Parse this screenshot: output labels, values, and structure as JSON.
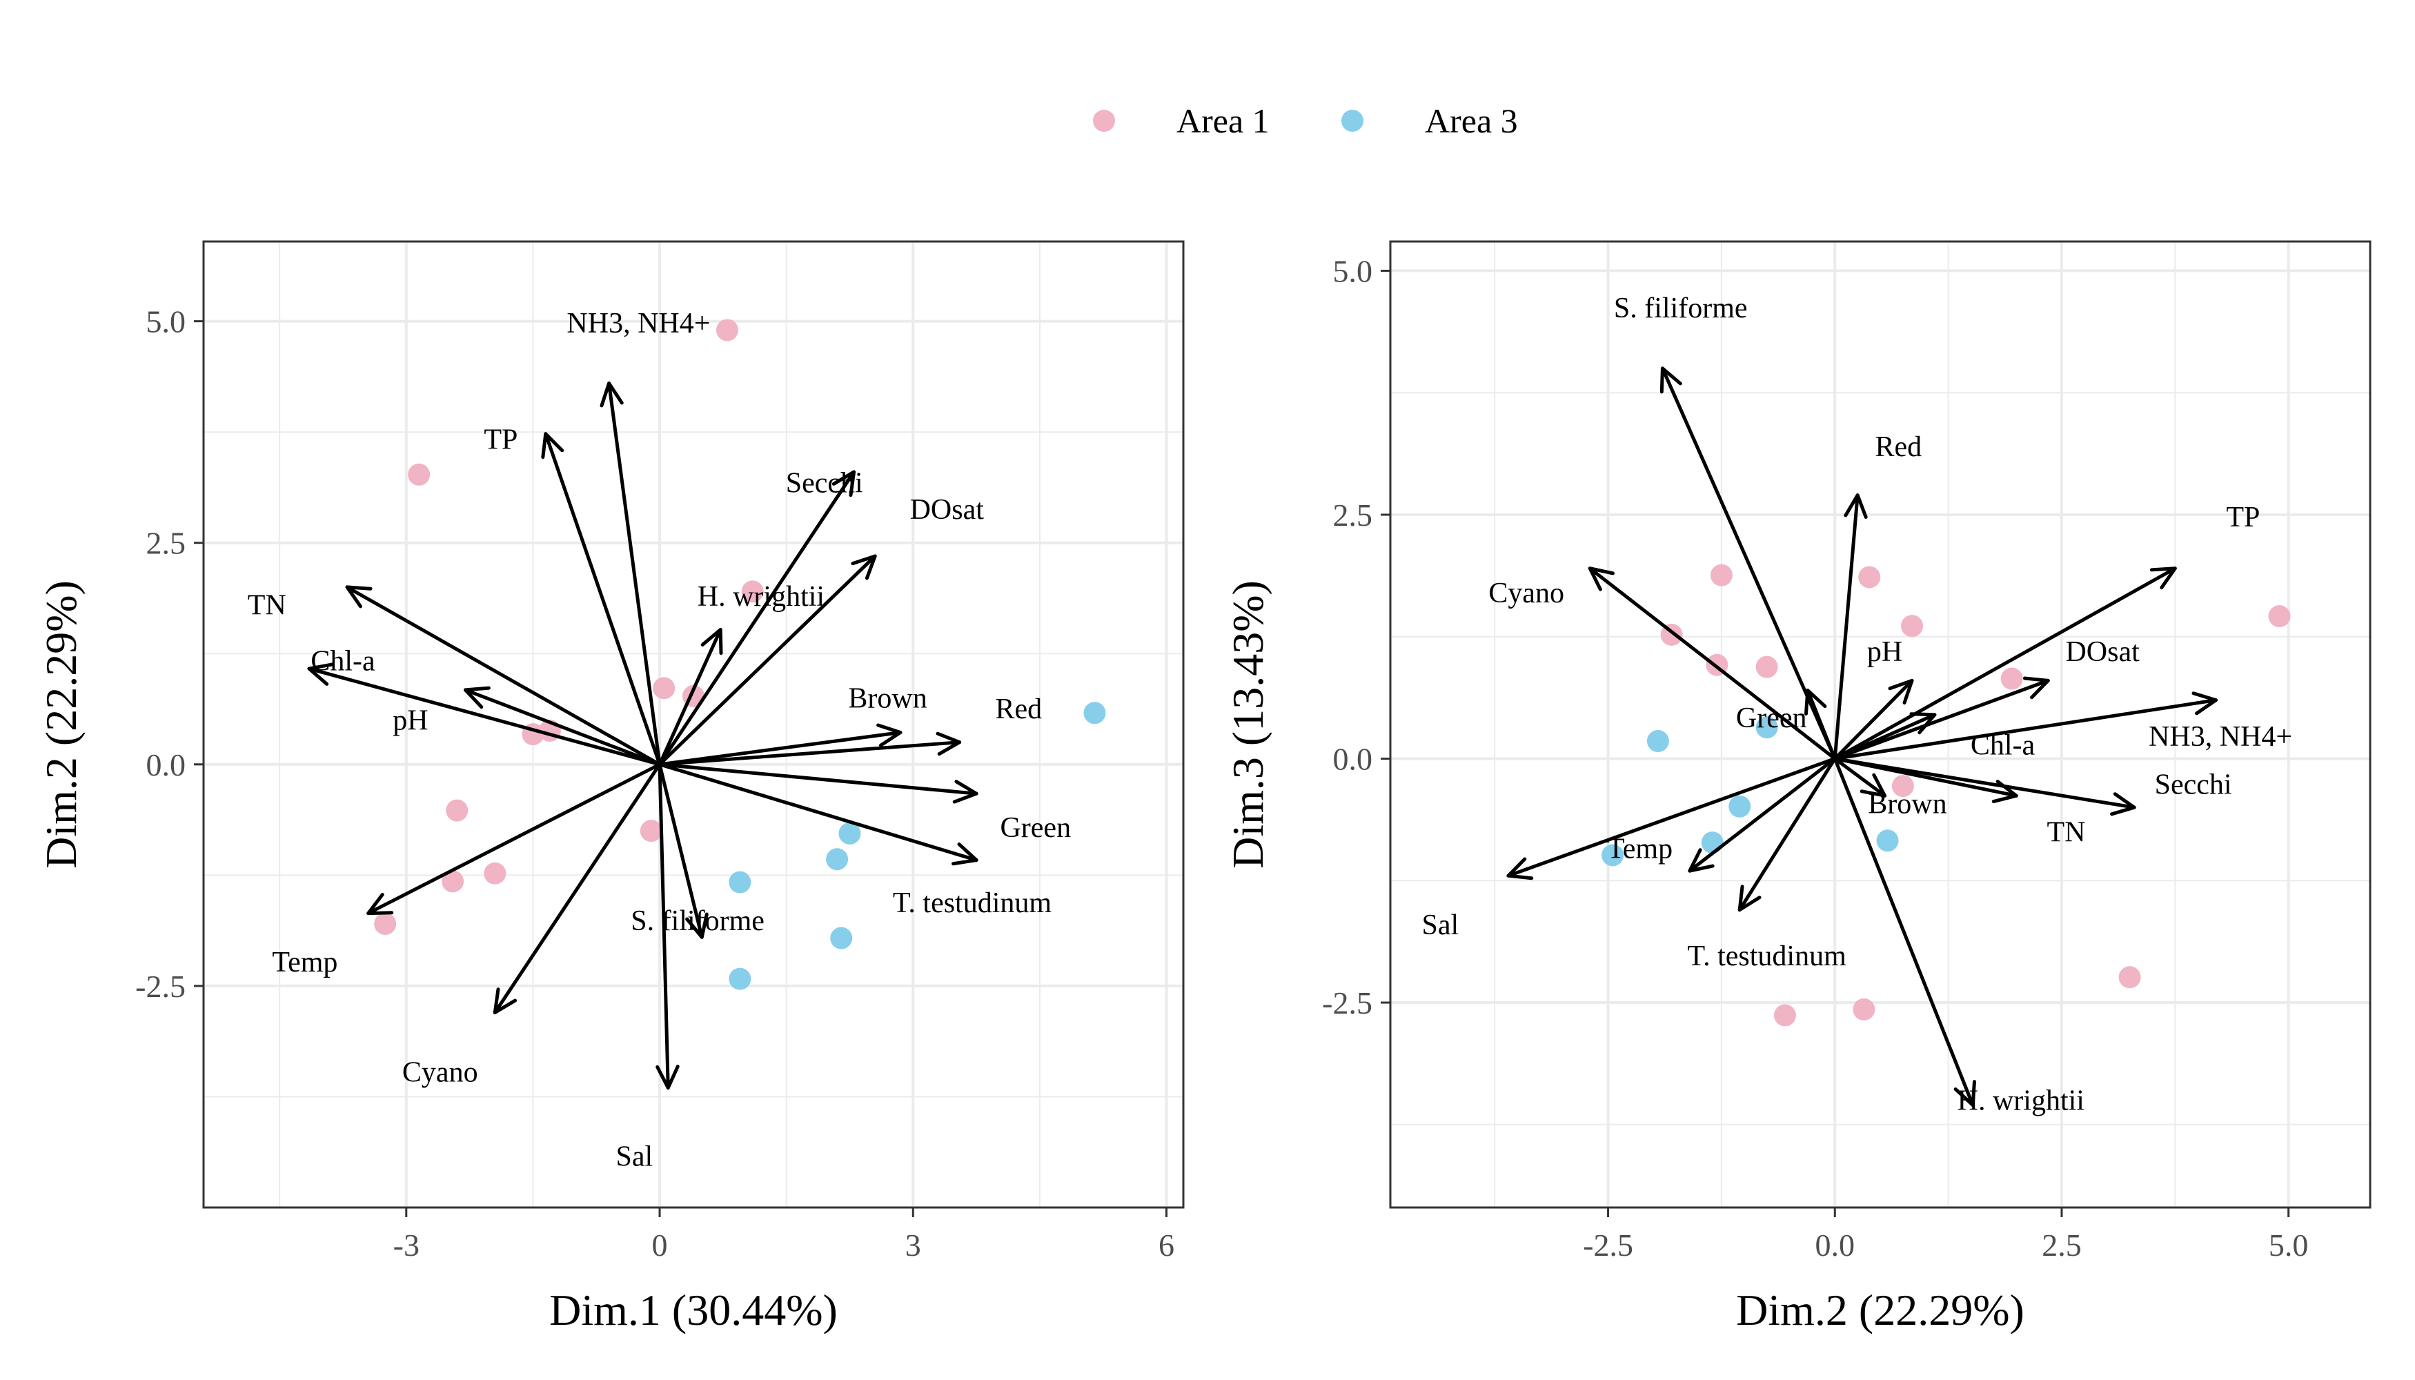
{
  "colors": {
    "area1": "#F0B4C4",
    "area3": "#87CEEB",
    "arrow": "#000000",
    "grid": "#EBEBEB",
    "axis_text": "#4D4D4D",
    "panel_border": "#333333"
  },
  "legend": {
    "position": "top-center",
    "items": [
      {
        "label": "Area 1",
        "color": "#F0B4C4"
      },
      {
        "label": "Area 3",
        "color": "#87CEEB"
      }
    ]
  },
  "chart_data": [
    {
      "type": "scatter",
      "subtype": "pca-biplot",
      "xlabel": "Dim.1 (30.44%)",
      "ylabel": "Dim.2 (22.29%)",
      "xlim": [
        -5.4,
        6.2
      ],
      "ylim": [
        -5.0,
        5.9
      ],
      "xticks": [
        {
          "value": -3,
          "label": "-3"
        },
        {
          "value": 0,
          "label": "0"
        },
        {
          "value": 3,
          "label": "3"
        },
        {
          "value": 6,
          "label": "6"
        }
      ],
      "yticks": [
        {
          "value": 5,
          "label": "5.0"
        },
        {
          "value": 2.5,
          "label": "2.5"
        },
        {
          "value": 0,
          "label": "0.0"
        },
        {
          "value": -2.5,
          "label": "-2.5"
        }
      ],
      "grid": true,
      "points": [
        {
          "x": 0.8,
          "y": 4.9,
          "area": "Area 1"
        },
        {
          "x": -2.85,
          "y": 3.27,
          "area": "Area 1"
        },
        {
          "x": 1.1,
          "y": 1.95,
          "area": "Area 1"
        },
        {
          "x": 0.05,
          "y": 0.86,
          "area": "Area 1"
        },
        {
          "x": 0.4,
          "y": 0.77,
          "area": "Area 1"
        },
        {
          "x": -1.5,
          "y": 0.34,
          "area": "Area 1"
        },
        {
          "x": -1.3,
          "y": 0.38,
          "area": "Area 1"
        },
        {
          "x": -2.4,
          "y": -0.52,
          "area": "Area 1"
        },
        {
          "x": -2.45,
          "y": -1.32,
          "area": "Area 1"
        },
        {
          "x": -1.95,
          "y": -1.23,
          "area": "Area 1"
        },
        {
          "x": -3.25,
          "y": -1.8,
          "area": "Area 1"
        },
        {
          "x": -0.1,
          "y": -0.75,
          "area": "Area 1"
        },
        {
          "x": 5.15,
          "y": 0.58,
          "area": "Area 3"
        },
        {
          "x": 2.25,
          "y": -0.78,
          "area": "Area 3"
        },
        {
          "x": 2.1,
          "y": -1.07,
          "area": "Area 3"
        },
        {
          "x": 0.95,
          "y": -1.33,
          "area": "Area 3"
        },
        {
          "x": 2.15,
          "y": -1.96,
          "area": "Area 3"
        },
        {
          "x": 0.95,
          "y": -2.42,
          "area": "Area 3"
        }
      ],
      "vectors": [
        {
          "name": "NH3, NH4+",
          "x": -0.6,
          "y": 4.3,
          "label_x": -0.25,
          "label_y": 4.98
        },
        {
          "name": "TP",
          "x": -1.35,
          "y": 3.73,
          "label_x": -1.88,
          "label_y": 3.67
        },
        {
          "name": "Secchi",
          "x": 2.3,
          "y": 3.3,
          "label_x": 1.95,
          "label_y": 3.18
        },
        {
          "name": "DOsat",
          "x": 2.55,
          "y": 2.35,
          "label_x": 3.4,
          "label_y": 2.88
        },
        {
          "name": "H. wrightii",
          "x": 0.72,
          "y": 1.52,
          "label_x": 1.2,
          "label_y": 1.9
        },
        {
          "name": "TN",
          "x": -3.7,
          "y": 2.0,
          "label_x": -4.65,
          "label_y": 1.8
        },
        {
          "name": "Chl-a",
          "x": -4.15,
          "y": 1.08,
          "label_x": -3.75,
          "label_y": 1.17
        },
        {
          "name": "pH",
          "x": -2.3,
          "y": 0.84,
          "label_x": -2.95,
          "label_y": 0.5
        },
        {
          "name": "Brown",
          "x": 2.85,
          "y": 0.36,
          "label_x": 2.7,
          "label_y": 0.75
        },
        {
          "name": "Red",
          "x": 3.55,
          "y": 0.25,
          "label_x": 4.25,
          "label_y": 0.63
        },
        {
          "name": "Green",
          "x": 3.75,
          "y": -0.33,
          "label_x": 4.45,
          "label_y": -0.71
        },
        {
          "name": "T. testudinum",
          "x": 3.75,
          "y": -1.08,
          "label_x": 3.7,
          "label_y": -1.56
        },
        {
          "name": "S. filiforme",
          "x": 0.5,
          "y": -1.95,
          "label_x": 0.45,
          "label_y": -1.76
        },
        {
          "name": "Temp",
          "x": -3.45,
          "y": -1.68,
          "label_x": -4.2,
          "label_y": -2.23
        },
        {
          "name": "Cyano",
          "x": -1.95,
          "y": -2.8,
          "label_x": -2.6,
          "label_y": -3.47
        },
        {
          "name": "Sal",
          "x": 0.1,
          "y": -3.65,
          "label_x": -0.3,
          "label_y": -4.42
        }
      ]
    },
    {
      "type": "scatter",
      "subtype": "pca-biplot",
      "xlabel": "Dim.2 (22.29%)",
      "ylabel": "Dim.3 (13.43%)",
      "xlim": [
        -4.9,
        5.9
      ],
      "ylim": [
        -4.6,
        5.3
      ],
      "xticks": [
        {
          "value": -2.5,
          "label": "-2.5"
        },
        {
          "value": 0,
          "label": "0.0"
        },
        {
          "value": 2.5,
          "label": "2.5"
        },
        {
          "value": 5,
          "label": "5.0"
        }
      ],
      "yticks": [
        {
          "value": 5,
          "label": "5.0"
        },
        {
          "value": 2.5,
          "label": "2.5"
        },
        {
          "value": 0,
          "label": "0.0"
        },
        {
          "value": -2.5,
          "label": "-2.5"
        }
      ],
      "grid": true,
      "points": [
        {
          "x": -1.25,
          "y": 1.88,
          "area": "Area 1"
        },
        {
          "x": 0.38,
          "y": 1.86,
          "area": "Area 1"
        },
        {
          "x": 0.85,
          "y": 1.36,
          "area": "Area 1"
        },
        {
          "x": -1.8,
          "y": 1.27,
          "area": "Area 1"
        },
        {
          "x": -1.3,
          "y": 0.96,
          "area": "Area 1"
        },
        {
          "x": -0.75,
          "y": 0.94,
          "area": "Area 1"
        },
        {
          "x": 1.95,
          "y": 0.82,
          "area": "Area 1"
        },
        {
          "x": 4.9,
          "y": 1.46,
          "area": "Area 1"
        },
        {
          "x": 0.75,
          "y": -0.28,
          "area": "Area 1"
        },
        {
          "x": 3.25,
          "y": -2.24,
          "area": "Area 1"
        },
        {
          "x": 0.32,
          "y": -2.57,
          "area": "Area 1"
        },
        {
          "x": -0.55,
          "y": -2.63,
          "area": "Area 1"
        },
        {
          "x": -1.95,
          "y": 0.18,
          "area": "Area 3"
        },
        {
          "x": -0.75,
          "y": 0.32,
          "area": "Area 3"
        },
        {
          "x": -1.05,
          "y": -0.49,
          "area": "Area 3"
        },
        {
          "x": -1.35,
          "y": -0.86,
          "area": "Area 3"
        },
        {
          "x": -2.45,
          "y": -0.99,
          "area": "Area 3"
        },
        {
          "x": 0.58,
          "y": -0.84,
          "area": "Area 3"
        }
      ],
      "vectors": [
        {
          "name": "S. filiforme",
          "x": -1.9,
          "y": 4.0,
          "label_x": -1.7,
          "label_y": 4.62
        },
        {
          "name": "Red",
          "x": 0.25,
          "y": 2.7,
          "label_x": 0.7,
          "label_y": 3.2
        },
        {
          "name": "TP",
          "x": 3.75,
          "y": 1.95,
          "label_x": 4.5,
          "label_y": 2.48
        },
        {
          "name": "Cyano",
          "x": -2.7,
          "y": 1.95,
          "label_x": -3.4,
          "label_y": 1.7
        },
        {
          "name": "DOsat",
          "x": 2.35,
          "y": 0.8,
          "label_x": 2.95,
          "label_y": 1.1
        },
        {
          "name": "NH3, NH4+",
          "x": 4.2,
          "y": 0.6,
          "label_x": 4.25,
          "label_y": 0.23
        },
        {
          "name": "pH",
          "x": 0.85,
          "y": 0.8,
          "label_x": 0.55,
          "label_y": 1.1
        },
        {
          "name": "Chl-a",
          "x": 1.1,
          "y": 0.45,
          "label_x": 1.85,
          "label_y": 0.14
        },
        {
          "name": "Green",
          "x": -0.3,
          "y": 0.7,
          "label_x": -0.7,
          "label_y": 0.42
        },
        {
          "name": "Secchi",
          "x": 3.3,
          "y": -0.5,
          "label_x": 3.95,
          "label_y": -0.26
        },
        {
          "name": "TN",
          "x": 2.0,
          "y": -0.38,
          "label_x": 2.55,
          "label_y": -0.75
        },
        {
          "name": "Brown",
          "x": 0.55,
          "y": -0.38,
          "label_x": 0.8,
          "label_y": -0.46
        },
        {
          "name": "H. wrightii",
          "x": 1.52,
          "y": -3.55,
          "label_x": 2.05,
          "label_y": -3.5
        },
        {
          "name": "Sal",
          "x": -3.6,
          "y": -1.2,
          "label_x": -4.35,
          "label_y": -1.7
        },
        {
          "name": "Temp",
          "x": -1.6,
          "y": -1.15,
          "label_x": -2.15,
          "label_y": -0.92
        },
        {
          "name": "T. testudinum",
          "x": -1.05,
          "y": -1.55,
          "label_x": -0.75,
          "label_y": -2.02
        }
      ]
    }
  ]
}
